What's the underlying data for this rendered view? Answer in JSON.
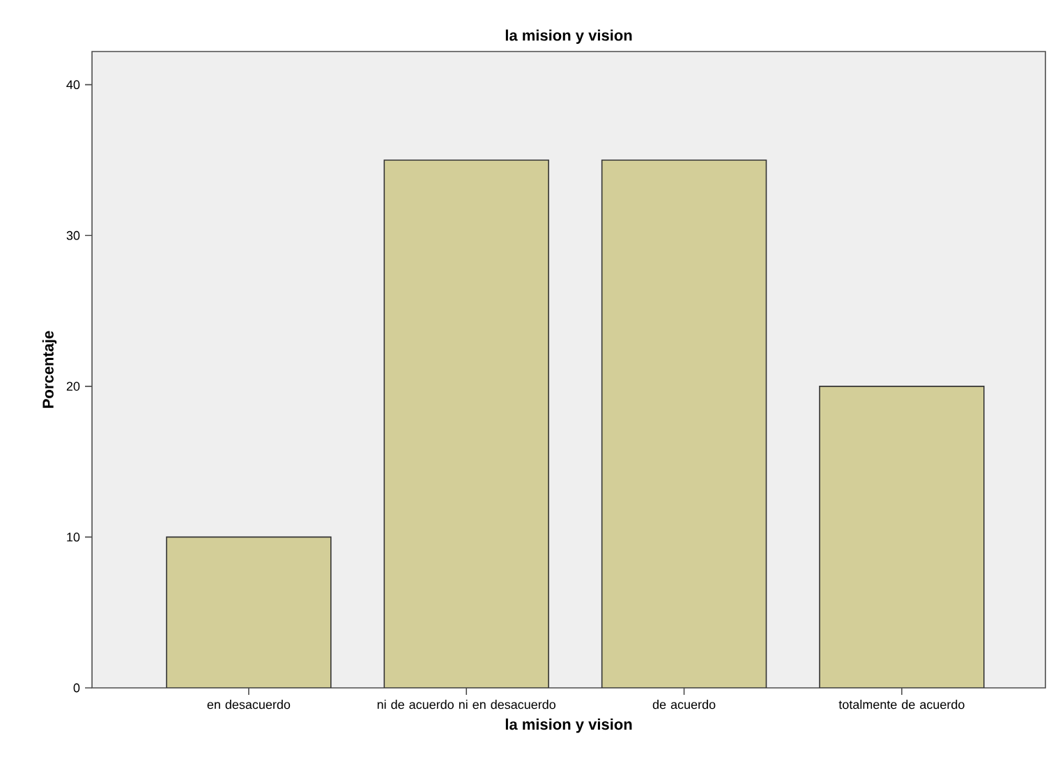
{
  "chart_data": {
    "type": "bar",
    "title": "la mision y vision",
    "xlabel": "la mision y vision",
    "ylabel": "Porcentaje",
    "categories": [
      "en desacuerdo",
      "ni de acuerdo ni en desacuerdo",
      "de acuerdo",
      "totalmente de acuerdo"
    ],
    "values": [
      10,
      35,
      35,
      20
    ],
    "color": "#d3ce98",
    "ylim": [
      0,
      42.2
    ],
    "yticks": [
      0,
      10,
      20,
      30,
      40
    ],
    "grid": false
  }
}
